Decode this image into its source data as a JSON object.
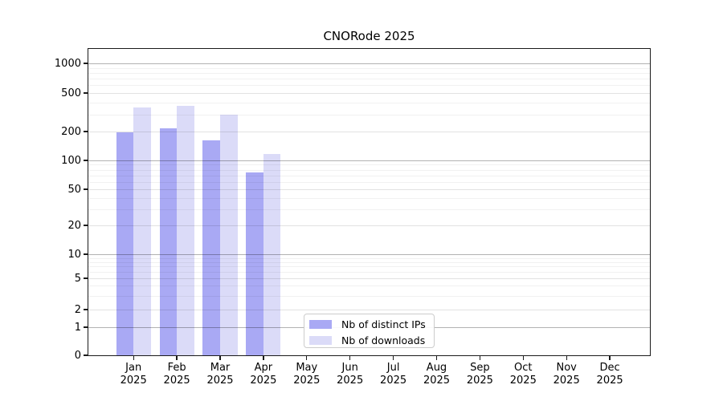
{
  "chart_data": {
    "type": "bar",
    "title": "CNORode 2025",
    "categories": [
      "Jan",
      "Feb",
      "Mar",
      "Apr",
      "May",
      "Jun",
      "Jul",
      "Aug",
      "Sep",
      "Oct",
      "Nov",
      "Dec"
    ],
    "x_tick_second_line": "2025",
    "series": [
      {
        "name": "Nb of distinct IPs",
        "color": "#a9a9f4",
        "values": [
          195,
          215,
          163,
          75,
          0,
          0,
          0,
          0,
          0,
          0,
          0,
          0
        ]
      },
      {
        "name": "Nb of downloads",
        "color": "#dbdbf8",
        "values": [
          355,
          370,
          298,
          117,
          0,
          0,
          0,
          0,
          0,
          0,
          0,
          0
        ]
      }
    ],
    "y_ticks": [
      0,
      1,
      2,
      5,
      10,
      20,
      50,
      100,
      200,
      500,
      1000
    ],
    "y_minor_ticks": [
      3,
      4,
      6,
      7,
      8,
      9,
      30,
      40,
      60,
      70,
      80,
      90,
      300,
      400,
      600,
      700,
      800,
      900
    ],
    "y_scale": "symlog",
    "ylim": [
      0,
      1400
    ],
    "grid": "on",
    "legend_position": "lower-center",
    "xlabel": "",
    "ylabel": ""
  }
}
